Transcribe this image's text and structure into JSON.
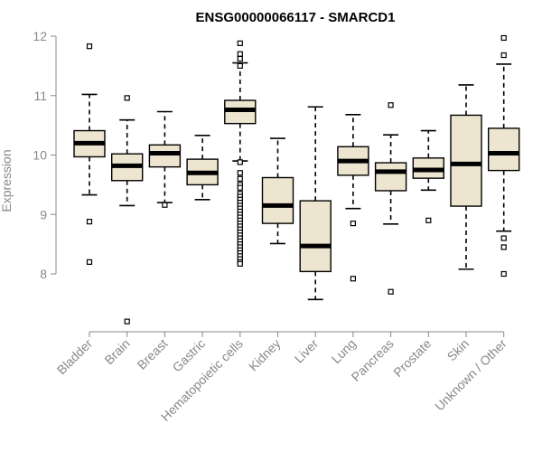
{
  "chart_data": {
    "type": "boxplot",
    "title": "ENSG00000066117 - SMARCD1",
    "ylabel": "Expression",
    "xlabel": "",
    "ylim": [
      7.0,
      12.1
    ],
    "yticks": [
      8,
      9,
      10,
      11,
      12
    ],
    "box_fill": "#ede5cf",
    "categories": [
      "Bladder",
      "Brain",
      "Breast",
      "Gastric",
      "Hematopoietic cells",
      "Kidney",
      "Liver",
      "Lung",
      "Pancreas",
      "Prostate",
      "Skin",
      "Unknown / Other"
    ],
    "boxes": [
      {
        "name": "Bladder",
        "whisker_low": 9.33,
        "q1": 9.97,
        "median": 10.2,
        "q3": 10.41,
        "whisker_high": 11.02,
        "outliers": [
          11.83,
          8.88,
          8.2
        ]
      },
      {
        "name": "Brain",
        "whisker_low": 9.15,
        "q1": 9.57,
        "median": 9.82,
        "q3": 10.02,
        "whisker_high": 10.59,
        "outliers": [
          10.96,
          7.2
        ]
      },
      {
        "name": "Breast",
        "whisker_low": 9.2,
        "q1": 9.8,
        "median": 10.03,
        "q3": 10.17,
        "whisker_high": 10.73,
        "outliers": [
          9.16
        ]
      },
      {
        "name": "Gastric",
        "whisker_low": 9.25,
        "q1": 9.5,
        "median": 9.7,
        "q3": 9.93,
        "whisker_high": 10.33,
        "outliers": []
      },
      {
        "name": "Hematopoietic cells",
        "whisker_low": 9.9,
        "q1": 10.53,
        "median": 10.76,
        "q3": 10.92,
        "whisker_high": 11.55,
        "outliers": [
          11.88,
          11.7,
          11.62,
          11.5,
          9.88,
          9.7,
          9.6,
          9.5,
          9.45,
          9.35,
          9.3,
          9.25,
          9.2,
          9.15,
          9.1,
          9.05,
          9.0,
          8.95,
          8.9,
          8.85,
          8.8,
          8.75,
          8.7,
          8.65,
          8.6,
          8.55,
          8.5,
          8.45,
          8.4,
          8.35,
          8.3,
          8.25,
          8.2,
          8.17
        ]
      },
      {
        "name": "Kidney",
        "whisker_low": 8.51,
        "q1": 8.85,
        "median": 9.15,
        "q3": 9.62,
        "whisker_high": 10.28,
        "outliers": []
      },
      {
        "name": "Liver",
        "whisker_low": 7.57,
        "q1": 8.04,
        "median": 8.47,
        "q3": 9.23,
        "whisker_high": 10.81,
        "outliers": []
      },
      {
        "name": "Lung",
        "whisker_low": 9.1,
        "q1": 9.66,
        "median": 9.9,
        "q3": 10.14,
        "whisker_high": 10.68,
        "outliers": [
          8.85,
          7.92
        ]
      },
      {
        "name": "Pancreas",
        "whisker_low": 8.84,
        "q1": 9.4,
        "median": 9.72,
        "q3": 9.87,
        "whisker_high": 10.34,
        "outliers": [
          10.84,
          7.7
        ]
      },
      {
        "name": "Prostate",
        "whisker_low": 9.41,
        "q1": 9.61,
        "median": 9.75,
        "q3": 9.95,
        "whisker_high": 10.41,
        "outliers": [
          8.9
        ]
      },
      {
        "name": "Skin",
        "whisker_low": 8.08,
        "q1": 9.14,
        "median": 9.85,
        "q3": 10.67,
        "whisker_high": 11.18,
        "outliers": []
      },
      {
        "name": "Unknown / Other",
        "whisker_low": 8.72,
        "q1": 9.74,
        "median": 10.03,
        "q3": 10.45,
        "whisker_high": 11.53,
        "outliers": [
          11.97,
          11.68,
          8.6,
          8.45,
          8.0
        ]
      }
    ]
  }
}
